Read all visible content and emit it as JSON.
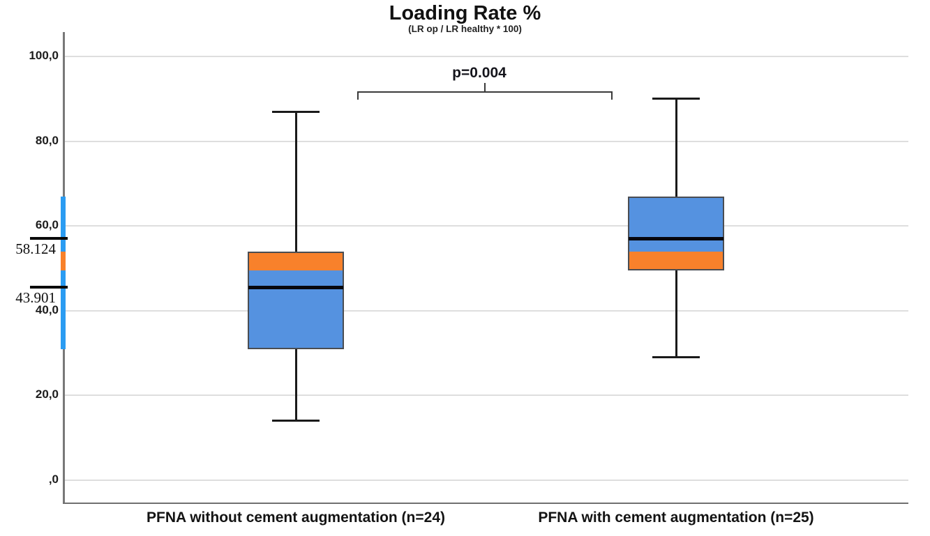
{
  "title": "Loading Rate %",
  "subtitle": "(LR op / LR healthy * 100)",
  "chart_data": {
    "type": "boxplot",
    "title": "Loading Rate %",
    "subtitle": "(LR op / LR healthy * 100)",
    "xlabel": "",
    "ylabel": "",
    "ylim": [
      0,
      100
    ],
    "grid": true,
    "legend": false,
    "yticks": [
      {
        "value": 100,
        "label": "100,0"
      },
      {
        "value": 80,
        "label": "80,0"
      },
      {
        "value": 60,
        "label": "60,0"
      },
      {
        "value": 40,
        "label": "40,0"
      },
      {
        "value": 20,
        "label": "20,0"
      },
      {
        "value": 0,
        "label": ",0"
      }
    ],
    "groups": [
      {
        "label": "PFNA without cement augmentation (n=24)",
        "n": 24,
        "whisker_min": 14,
        "q1": 31,
        "median": 43.901,
        "median_drawn_at": 45.5,
        "q3": 54,
        "whisker_max": 87,
        "median_axis_label": "43.901"
      },
      {
        "label": "PFNA with cement augmentation (n=25)",
        "n": 25,
        "whisker_min": 29,
        "q1": 49.5,
        "median": 58.124,
        "median_drawn_at": 57,
        "q3": 67,
        "whisker_max": 90,
        "median_axis_label": "58.124"
      }
    ],
    "significance": {
      "label": "p=0.004",
      "between_groups": [
        0,
        1
      ]
    },
    "iqr_overlap_band": {
      "low": 49.5,
      "high": 54
    },
    "iqr_union_axis_bar": {
      "low": 31,
      "high": 67
    },
    "colors": {
      "box_fill": "#5592E0",
      "overlap_orange": "#F8812B",
      "axis_bar_blue": "#2B9CF2",
      "median_line": "#07070e",
      "whisker": "#1a1a1a",
      "box_border": "#4a4d52",
      "gridline": "#dedede",
      "axis_line": "#787878",
      "text": "#1a1a1a"
    }
  }
}
